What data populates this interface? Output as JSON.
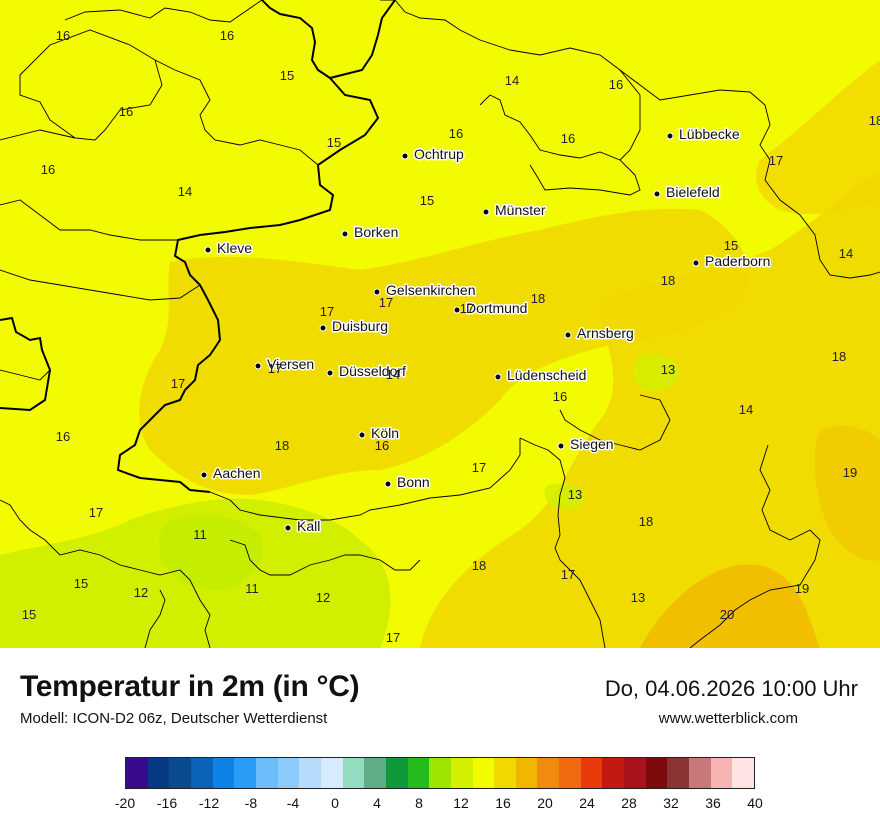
{
  "map": {
    "cities": [
      {
        "name": "Ochtrup"
      },
      {
        "name": "Lübbecke"
      },
      {
        "name": "Bielefeld"
      },
      {
        "name": "Münster"
      },
      {
        "name": "Borken"
      },
      {
        "name": "Kleve"
      },
      {
        "name": "Paderborn"
      },
      {
        "name": "Gelsenkirchen"
      },
      {
        "name": "Dortmund"
      },
      {
        "name": "Duisburg"
      },
      {
        "name": "Arnsberg"
      },
      {
        "name": "Viersen"
      },
      {
        "name": "Düsseldorf"
      },
      {
        "name": "Lüdenscheid"
      },
      {
        "name": "Köln"
      },
      {
        "name": "Siegen"
      },
      {
        "name": "Aachen"
      },
      {
        "name": "Bonn"
      },
      {
        "name": "Kall"
      }
    ],
    "temperatures": [
      "16",
      "16",
      "15",
      "14",
      "16",
      "16",
      "18",
      "15",
      "16",
      "16",
      "16",
      "17",
      "14",
      "15",
      "14",
      "15",
      "18",
      "17",
      "17",
      "18",
      "17",
      "14",
      "17",
      "17",
      "13",
      "18",
      "16",
      "16",
      "14",
      "18",
      "17",
      "13",
      "19",
      "16",
      "11",
      "18",
      "17",
      "18",
      "15",
      "12",
      "11",
      "12",
      "13",
      "19",
      "15",
      "20",
      "17",
      "17"
    ]
  },
  "footer": {
    "title": "Temperatur in 2m (in °C)",
    "subtitle": "Modell: ICON-D2 06z, Deutscher Wetterdienst",
    "datetime": "Do, 04.06.2026 10:00 Uhr",
    "website": "www.wetterblick.com"
  },
  "legend": {
    "colors": [
      "#3a0a8c",
      "#063a84",
      "#0a4a8f",
      "#0a63b8",
      "#0f82e6",
      "#2a9cf5",
      "#6bbcf9",
      "#8ccbfb",
      "#b5dcfd",
      "#d6ebfd",
      "#94dcc0",
      "#5fae86",
      "#0f9a3a",
      "#23bb1e",
      "#9ee600",
      "#d3ef00",
      "#f2fb00",
      "#f1d800",
      "#f1b700",
      "#f08a10",
      "#ef6a10",
      "#e83a0a",
      "#c21a12",
      "#a8121a",
      "#7d0a0a",
      "#8a3434",
      "#c87878",
      "#f6b4b4",
      "#ffe2e2"
    ],
    "labels": [
      "-20",
      "-16",
      "-12",
      "-8",
      "-4",
      "0",
      "4",
      "8",
      "12",
      "16",
      "20",
      "24",
      "28",
      "32",
      "36",
      "40"
    ]
  }
}
